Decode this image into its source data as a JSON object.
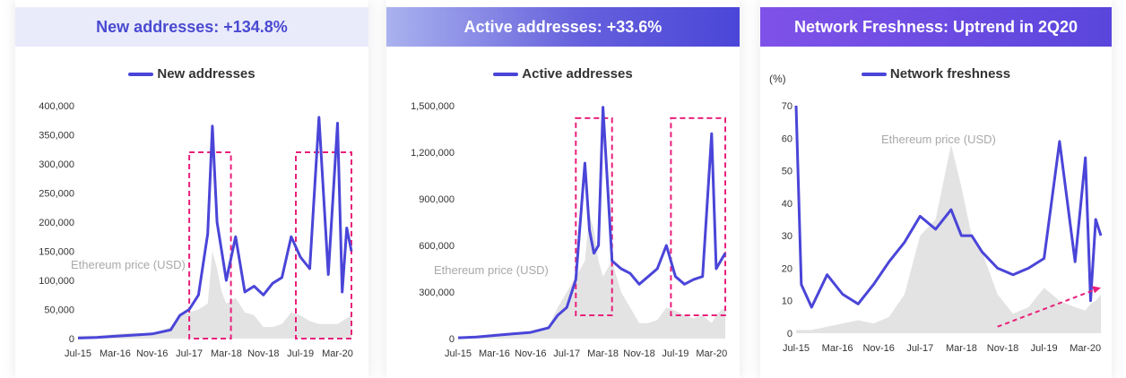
{
  "colors": {
    "series_line": "#4a45d8",
    "price_area": "#e3e3e3",
    "highlight_box": "#e8207a",
    "trend_arrow": "#e8207a"
  },
  "panels": [
    {
      "header": "New addresses: +134.8%",
      "legend": "New addresses",
      "eth_label": "Ethereum price (USD)",
      "unit": ""
    },
    {
      "header": "Active addresses: +33.6%",
      "legend": "Active addresses",
      "eth_label": "Ethereum price (USD)",
      "unit": ""
    },
    {
      "header": "Network Freshness: Uptrend in 2Q20",
      "legend": "Network freshness",
      "eth_label": "Ethereum price (USD)",
      "unit": "(%)"
    }
  ],
  "chart_data": [
    {
      "type": "line",
      "title": "New addresses: +134.8%",
      "x_tick_labels": [
        "Jul-15",
        "Mar-16",
        "Nov-16",
        "Jul-17",
        "Mar-18",
        "Nov-18",
        "Jul-19",
        "Mar-20"
      ],
      "y_tick_labels": [
        "0",
        "50,000",
        "100,000",
        "150,000",
        "200,000",
        "250,000",
        "300,000",
        "350,000",
        "400,000"
      ],
      "ylim": [
        0,
        400000
      ],
      "x": [
        "Jul-15",
        "Nov-15",
        "Mar-16",
        "Jul-16",
        "Nov-16",
        "Mar-17",
        "May-17",
        "Jul-17",
        "Sep-17",
        "Nov-17",
        "Dec-17",
        "Jan-18",
        "Feb-18",
        "Mar-18",
        "May-18",
        "Jul-18",
        "Sep-18",
        "Nov-18",
        "Jan-19",
        "Mar-19",
        "May-19",
        "Jul-19",
        "Sep-19",
        "Nov-19",
        "Jan-20",
        "Mar-20",
        "Apr-20",
        "May-20",
        "Jun-20"
      ],
      "series": [
        {
          "name": "New addresses",
          "values": [
            1000,
            2000,
            4000,
            6000,
            8000,
            15000,
            40000,
            50000,
            75000,
            180000,
            365000,
            200000,
            150000,
            100000,
            175000,
            80000,
            90000,
            75000,
            95000,
            105000,
            175000,
            140000,
            120000,
            380000,
            110000,
            370000,
            80000,
            190000,
            150000
          ]
        },
        {
          "name": "Ethereum price (USD)",
          "values": [
            5000,
            5000,
            8000,
            10000,
            8000,
            20000,
            40000,
            45000,
            50000,
            60000,
            150000,
            120000,
            80000,
            60000,
            70000,
            45000,
            40000,
            20000,
            20000,
            25000,
            45000,
            40000,
            30000,
            25000,
            25000,
            25000,
            30000,
            35000,
            40000
          ]
        }
      ],
      "highlights": [
        {
          "x_from": "Jul-17",
          "x_to": "Apr-18",
          "y_from": 0,
          "y_to": 320000
        },
        {
          "x_from": "Jun-19",
          "x_to": "Jun-20",
          "y_from": 0,
          "y_to": 320000
        }
      ]
    },
    {
      "type": "line",
      "title": "Active addresses: +33.6%",
      "x_tick_labels": [
        "Jul-15",
        "Mar-16",
        "Nov-16",
        "Jul-17",
        "Mar-18",
        "Nov-18",
        "Jul-19",
        "Mar-20"
      ],
      "y_tick_labels": [
        "0",
        "300,000",
        "600,000",
        "900,000",
        "1,200,000",
        "1,500,000"
      ],
      "ylim": [
        0,
        1500000
      ],
      "x": [
        "Jul-15",
        "Nov-15",
        "Mar-16",
        "Jul-16",
        "Nov-16",
        "Mar-17",
        "May-17",
        "Jul-17",
        "Sep-17",
        "Nov-17",
        "Dec-17",
        "Jan-18",
        "Feb-18",
        "Mar-18",
        "May-18",
        "Jul-18",
        "Sep-18",
        "Nov-18",
        "Jan-19",
        "Mar-19",
        "May-19",
        "Jul-19",
        "Sep-19",
        "Nov-19",
        "Jan-20",
        "Mar-20",
        "Apr-20",
        "May-20",
        "Jun-20"
      ],
      "series": [
        {
          "name": "Active addresses",
          "values": [
            5000,
            10000,
            20000,
            30000,
            40000,
            70000,
            150000,
            200000,
            380000,
            1130000,
            700000,
            550000,
            600000,
            1490000,
            500000,
            450000,
            420000,
            350000,
            400000,
            450000,
            600000,
            400000,
            350000,
            380000,
            400000,
            1320000,
            450000,
            500000,
            550000
          ]
        },
        {
          "name": "Ethereum price (USD)",
          "values": [
            10000,
            10000,
            30000,
            40000,
            30000,
            80000,
            200000,
            300000,
            400000,
            500000,
            800000,
            700000,
            500000,
            400000,
            500000,
            300000,
            200000,
            100000,
            100000,
            120000,
            200000,
            180000,
            150000,
            130000,
            150000,
            100000,
            150000,
            180000,
            200000
          ]
        }
      ],
      "highlights": [
        {
          "x_from": "Sep-17",
          "x_to": "May-18",
          "y_from": 150000,
          "y_to": 1420000
        },
        {
          "x_from": "Jun-19",
          "x_to": "Jun-20",
          "y_from": 150000,
          "y_to": 1420000
        }
      ]
    },
    {
      "type": "line",
      "title": "Network Freshness: Uptrend in 2Q20",
      "x_tick_labels": [
        "Jul-15",
        "Mar-16",
        "Nov-16",
        "Jul-17",
        "Mar-18",
        "Nov-18",
        "Jul-19",
        "Mar-20"
      ],
      "y_tick_labels": [
        "0",
        "10",
        "20",
        "30",
        "40",
        "50",
        "60",
        "70"
      ],
      "ylabel": "(%)",
      "ylim": [
        0,
        70
      ],
      "x": [
        "Jul-15",
        "Aug-15",
        "Oct-15",
        "Jan-16",
        "Apr-16",
        "Jul-16",
        "Oct-16",
        "Jan-17",
        "Apr-17",
        "Jul-17",
        "Oct-17",
        "Jan-18",
        "Mar-18",
        "May-18",
        "Jul-18",
        "Oct-18",
        "Jan-19",
        "Apr-19",
        "Jul-19",
        "Oct-19",
        "Jan-20",
        "Mar-20",
        "Apr-20",
        "May-20",
        "Jun-20"
      ],
      "series": [
        {
          "name": "Network freshness",
          "values": [
            70,
            15,
            8,
            18,
            12,
            9,
            15,
            22,
            28,
            36,
            32,
            38,
            30,
            30,
            25,
            20,
            18,
            20,
            23,
            59,
            22,
            54,
            10,
            35,
            30
          ]
        },
        {
          "name": "Ethereum price (USD)",
          "values": [
            1,
            1,
            1,
            2,
            3,
            4,
            3,
            5,
            12,
            30,
            35,
            58,
            45,
            30,
            25,
            12,
            6,
            8,
            14,
            10,
            8,
            7,
            9,
            10,
            12
          ]
        }
      ],
      "trend_arrow": {
        "x_from": "Oct-18",
        "x_to": "Jun-20",
        "y_from": 2,
        "y_to": 14
      }
    }
  ]
}
